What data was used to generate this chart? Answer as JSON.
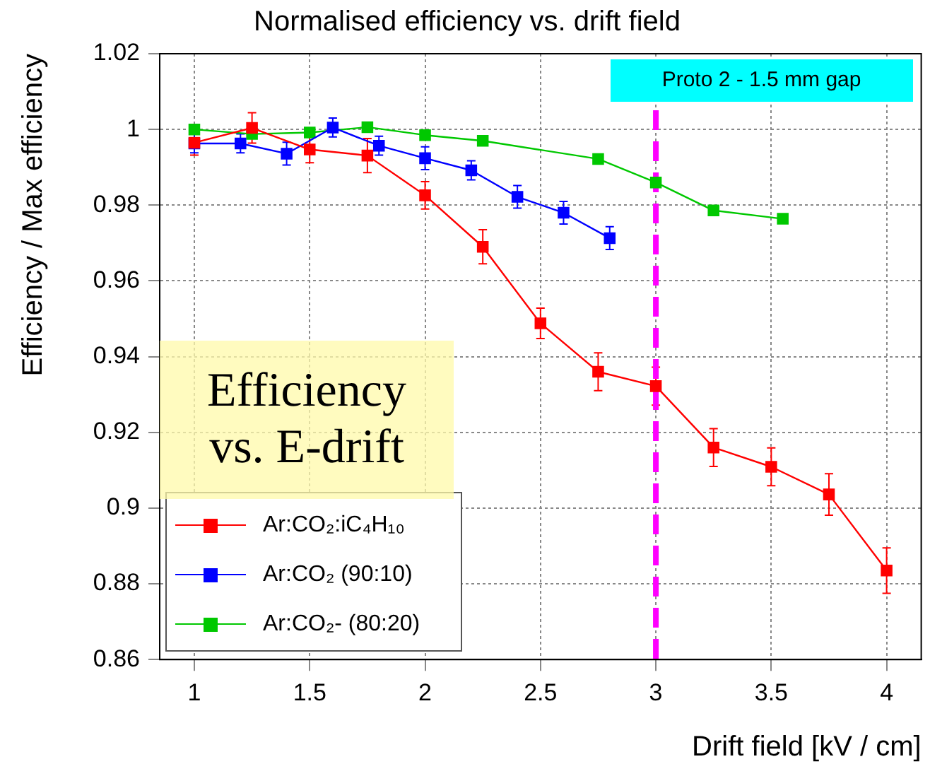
{
  "chart_data": {
    "type": "line",
    "title": "Normalised efficiency vs. drift field",
    "xlabel": "Drift field [kV / cm]",
    "ylabel": "Efficiency / Max efficiency",
    "xlim": [
      0.85,
      4.15
    ],
    "xticks": [
      1,
      1.5,
      2,
      2.5,
      3,
      3.5,
      4
    ],
    "ylim": [
      0.86,
      1.02
    ],
    "yticks": [
      {
        "value": 0.86,
        "label": "0.86"
      },
      {
        "value": 0.88,
        "label": "0.88"
      },
      {
        "value": 0.9,
        "label": "0.9"
      },
      {
        "value": 0.92,
        "label": "0.92"
      },
      {
        "value": 0.94,
        "label": "0.94"
      },
      {
        "value": 0.96,
        "label": "0.96"
      },
      {
        "value": 0.98,
        "label": "0.98"
      },
      1,
      {
        "value": 1.02,
        "label": "1.02"
      }
    ],
    "grid": true,
    "legend": "bottom left",
    "marker": "square",
    "line_style": "solid",
    "series": [
      {
        "name": "Ar:CO₂:iC₄H₁₀",
        "color": "#ff0000",
        "x": [
          1,
          1.25,
          1.5,
          1.75,
          2,
          2.25,
          2.5,
          2.75,
          3,
          3.25,
          3.5,
          3.75,
          4
        ],
        "values": [
          0.9965,
          1.0004,
          0.9947,
          0.9931,
          0.9826,
          0.969,
          0.9488,
          0.936,
          0.9322,
          0.916,
          0.9109,
          0.9036,
          0.8835
        ],
        "errors": [
          0.0033,
          0.004,
          0.0035,
          0.0045,
          0.0036,
          0.0045,
          0.004,
          0.005,
          0.005,
          0.005,
          0.005,
          0.0055,
          0.006
        ]
      },
      {
        "name": "Ar:CO₂  (90:10)",
        "color": "#0000ff",
        "x": [
          1,
          1.2,
          1.4,
          1.6,
          1.8,
          2,
          2.2,
          2.4,
          2.6,
          2.8
        ],
        "values": [
          0.9963,
          0.9963,
          0.9936,
          1.0005,
          0.9957,
          0.9924,
          0.9892,
          0.9822,
          0.978,
          0.9713
        ],
        "errors": [
          0.0025,
          0.0025,
          0.003,
          0.0025,
          0.0025,
          0.003,
          0.0025,
          0.003,
          0.003,
          0.003
        ]
      },
      {
        "name": "Ar:CO₂- (80:20)",
        "color": "#00c800",
        "x": [
          1,
          1.25,
          1.5,
          1.75,
          2,
          2.25,
          2.75,
          3,
          3.25,
          3.55
        ],
        "values": [
          1,
          0.9988,
          0.9992,
          1.0006,
          0.9985,
          0.997,
          0.9922,
          0.986,
          0.9786,
          0.9764
        ]
      }
    ],
    "ref_lines": [
      {
        "axis": "x",
        "value": 3,
        "color": "#ff00ff",
        "line_style": "dashed"
      }
    ],
    "annotations": [
      "Proto 2 - 1.5 mm gap",
      "Efficiency vs. E-drift"
    ]
  }
}
